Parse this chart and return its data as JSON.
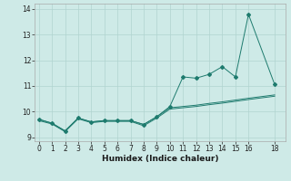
{
  "xlabel": "Humidex (Indice chaleur)",
  "background_color": "#ceeae7",
  "grid_color": "#b0d4d0",
  "line_color": "#1e7b6e",
  "line1_x": [
    0,
    1,
    2,
    3,
    4,
    5,
    6,
    7,
    8,
    9,
    10,
    11,
    12,
    13,
    14,
    15,
    16,
    18
  ],
  "line1_y": [
    9.7,
    9.55,
    9.25,
    9.75,
    9.6,
    9.65,
    9.65,
    9.65,
    9.5,
    9.8,
    10.2,
    11.35,
    11.3,
    11.45,
    11.75,
    11.35,
    13.78,
    11.05
  ],
  "line2_x": [
    0,
    1,
    2,
    3,
    4,
    5,
    6,
    7,
    8,
    9,
    10,
    11,
    12,
    13,
    14,
    15,
    16,
    18
  ],
  "line2_y": [
    9.7,
    9.55,
    9.25,
    9.75,
    9.6,
    9.65,
    9.65,
    9.65,
    9.5,
    9.8,
    10.15,
    10.2,
    10.25,
    10.32,
    10.38,
    10.45,
    10.52,
    10.65
  ],
  "line3_x": [
    0,
    1,
    2,
    3,
    4,
    5,
    6,
    7,
    8,
    9,
    10,
    11,
    12,
    13,
    14,
    15,
    16,
    18
  ],
  "line3_y": [
    9.65,
    9.52,
    9.22,
    9.72,
    9.57,
    9.62,
    9.62,
    9.62,
    9.45,
    9.75,
    10.1,
    10.15,
    10.2,
    10.27,
    10.33,
    10.4,
    10.47,
    10.6
  ],
  "xlim": [
    -0.3,
    18.8
  ],
  "ylim": [
    8.85,
    14.2
  ],
  "yticks": [
    9,
    10,
    11,
    12,
    13,
    14
  ],
  "xticks": [
    0,
    1,
    2,
    3,
    4,
    5,
    6,
    7,
    8,
    9,
    10,
    11,
    12,
    13,
    14,
    15,
    16,
    18
  ],
  "tick_fontsize": 5.5,
  "xlabel_fontsize": 6.5
}
